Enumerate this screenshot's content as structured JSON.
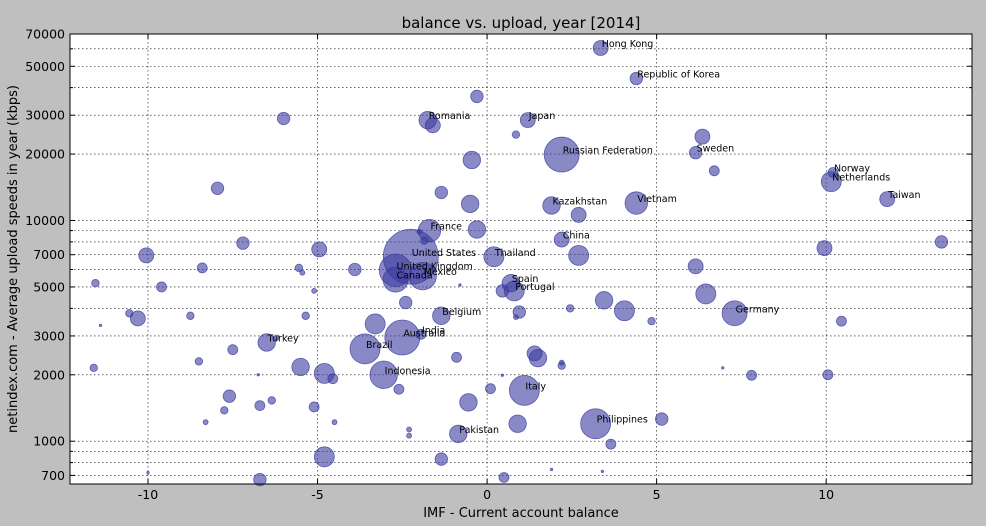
{
  "chart_data": {
    "type": "scatter",
    "title": "balance vs. upload, year [2014]",
    "xlabel": "IMF - Current account balance",
    "ylabel": "netindex.com - Average upload speeds in year (kbps)",
    "xscale": "linear",
    "yscale": "log",
    "xlim": [
      -12.3,
      14.3
    ],
    "ylim": [
      640,
      70000
    ],
    "grid": true,
    "xticks": [
      -10,
      -5,
      0,
      5,
      10
    ],
    "xtick_labels": [
      "-10",
      "-5",
      "0",
      "5",
      "10"
    ],
    "yticks": [
      700,
      1000,
      2000,
      3000,
      5000,
      7000,
      10000,
      20000,
      30000,
      50000,
      70000
    ],
    "ytick_labels": [
      "700",
      "1000",
      "2000",
      "3000",
      "5000",
      "7000",
      "10000",
      "20000",
      "30000",
      "50000",
      "70000"
    ],
    "ygrid_extra": [
      800,
      900,
      4000,
      6000,
      8000,
      9000,
      40000,
      60000
    ],
    "marker_color": "#3a3aa0",
    "background": "#bfbfbf",
    "plot_background": "#ffffff",
    "points": [
      {
        "label": "Hong Kong",
        "x": 3.35,
        "y": 60500,
        "s": 6
      },
      {
        "label": "Republic of Korea",
        "x": 4.4,
        "y": 44000,
        "s": 5
      },
      {
        "label": "Romania",
        "x": -1.75,
        "y": 28500,
        "s": 7
      },
      {
        "label": "Japan",
        "x": 1.2,
        "y": 28500,
        "s": 6
      },
      {
        "label": "Russian Federation",
        "x": 2.2,
        "y": 19900,
        "s": 14
      },
      {
        "label": "Sweden",
        "x": 6.15,
        "y": 20300,
        "s": 5
      },
      {
        "label": "Norway",
        "x": 10.2,
        "y": 16500,
        "s": 4
      },
      {
        "label": "Netherlands",
        "x": 10.15,
        "y": 15000,
        "s": 8
      },
      {
        "label": "Taiwan",
        "x": 11.8,
        "y": 12500,
        "s": 6
      },
      {
        "label": "Kazakhstan",
        "x": 1.9,
        "y": 11700,
        "s": 7
      },
      {
        "label": "Vietnam",
        "x": 4.4,
        "y": 12000,
        "s": 9
      },
      {
        "label": "France",
        "x": -1.7,
        "y": 9000,
        "s": 9
      },
      {
        "label": "China",
        "x": 2.2,
        "y": 8200,
        "s": 6
      },
      {
        "label": "United States",
        "x": -2.25,
        "y": 6850,
        "s": 22
      },
      {
        "label": "Thailand",
        "x": 0.2,
        "y": 6850,
        "s": 8
      },
      {
        "label": "United Kingdom",
        "x": -2.7,
        "y": 5950,
        "s": 13
      },
      {
        "label": "Canada",
        "x": -2.7,
        "y": 5400,
        "s": 10
      },
      {
        "label": "Mexico",
        "x": -1.9,
        "y": 5600,
        "s": 11
      },
      {
        "label": "Spain",
        "x": 0.7,
        "y": 5200,
        "s": 7
      },
      {
        "label": "Portugal",
        "x": 0.8,
        "y": 4800,
        "s": 8
      },
      {
        "label": "Germany",
        "x": 7.3,
        "y": 3800,
        "s": 10
      },
      {
        "label": "Belgium",
        "x": -1.35,
        "y": 3700,
        "s": 7
      },
      {
        "label": "Australia",
        "x": -2.5,
        "y": 2950,
        "s": 14
      },
      {
        "label": "India",
        "x": -1.95,
        "y": 3050,
        "s": 4
      },
      {
        "label": "Brazil",
        "x": -3.6,
        "y": 2620,
        "s": 12
      },
      {
        "label": "Turkey",
        "x": -6.5,
        "y": 2800,
        "s": 7
      },
      {
        "label": "Indonesia",
        "x": -3.05,
        "y": 2000,
        "s": 11
      },
      {
        "label": "Italy",
        "x": 1.1,
        "y": 1700,
        "s": 12
      },
      {
        "label": "Philippines",
        "x": 3.2,
        "y": 1200,
        "s": 12
      },
      {
        "label": "Pakistan",
        "x": -0.85,
        "y": 1080,
        "s": 7
      },
      {
        "label": "",
        "x": -6.0,
        "y": 29000,
        "s": 5
      },
      {
        "label": "",
        "x": -0.3,
        "y": 36500,
        "s": 5
      },
      {
        "label": "",
        "x": -1.6,
        "y": 27000,
        "s": 6
      },
      {
        "label": "",
        "x": 0.85,
        "y": 24500,
        "s": 3
      },
      {
        "label": "",
        "x": 6.35,
        "y": 24000,
        "s": 6
      },
      {
        "label": "",
        "x": -0.45,
        "y": 18800,
        "s": 7
      },
      {
        "label": "",
        "x": 6.7,
        "y": 16800,
        "s": 4
      },
      {
        "label": "",
        "x": -7.95,
        "y": 14000,
        "s": 5
      },
      {
        "label": "",
        "x": -1.35,
        "y": 13400,
        "s": 5
      },
      {
        "label": "",
        "x": -0.5,
        "y": 11900,
        "s": 7
      },
      {
        "label": "",
        "x": 2.7,
        "y": 10600,
        "s": 6
      },
      {
        "label": "",
        "x": -0.3,
        "y": 9100,
        "s": 7
      },
      {
        "label": "",
        "x": -2.0,
        "y": 8900,
        "s": 2
      },
      {
        "label": "",
        "x": -1.85,
        "y": 8100,
        "s": 3
      },
      {
        "label": "",
        "x": 13.4,
        "y": 8000,
        "s": 5
      },
      {
        "label": "",
        "x": -7.2,
        "y": 7900,
        "s": 5
      },
      {
        "label": "",
        "x": 9.95,
        "y": 7500,
        "s": 6
      },
      {
        "label": "",
        "x": -4.95,
        "y": 7400,
        "s": 6
      },
      {
        "label": "",
        "x": -10.05,
        "y": 6950,
        "s": 6
      },
      {
        "label": "",
        "x": 2.7,
        "y": 6950,
        "s": 8
      },
      {
        "label": "",
        "x": -8.4,
        "y": 6100,
        "s": 4
      },
      {
        "label": "",
        "x": -5.55,
        "y": 6100,
        "s": 3
      },
      {
        "label": "",
        "x": -3.9,
        "y": 6000,
        "s": 5
      },
      {
        "label": "",
        "x": -5.45,
        "y": 5800,
        "s": 2
      },
      {
        "label": "",
        "x": 6.15,
        "y": 6200,
        "s": 6
      },
      {
        "label": "",
        "x": -11.55,
        "y": 5200,
        "s": 3
      },
      {
        "label": "",
        "x": -9.6,
        "y": 5000,
        "s": 4
      },
      {
        "label": "",
        "x": -5.1,
        "y": 4800,
        "s": 2
      },
      {
        "label": "",
        "x": -0.8,
        "y": 5100,
        "s": 1
      },
      {
        "label": "",
        "x": 0.45,
        "y": 4800,
        "s": 5
      },
      {
        "label": "",
        "x": 6.45,
        "y": 4650,
        "s": 8
      },
      {
        "label": "",
        "x": 3.45,
        "y": 4350,
        "s": 7
      },
      {
        "label": "",
        "x": -2.4,
        "y": 4250,
        "s": 5
      },
      {
        "label": "",
        "x": 4.05,
        "y": 3900,
        "s": 8
      },
      {
        "label": "",
        "x": -10.55,
        "y": 3800,
        "s": 3
      },
      {
        "label": "",
        "x": -10.3,
        "y": 3600,
        "s": 6
      },
      {
        "label": "",
        "x": -8.75,
        "y": 3700,
        "s": 3
      },
      {
        "label": "",
        "x": -5.35,
        "y": 3700,
        "s": 3
      },
      {
        "label": "",
        "x": 0.95,
        "y": 3850,
        "s": 5
      },
      {
        "label": "",
        "x": 2.45,
        "y": 4000,
        "s": 3
      },
      {
        "label": "",
        "x": 4.85,
        "y": 3500,
        "s": 3
      },
      {
        "label": "",
        "x": 10.45,
        "y": 3500,
        "s": 4
      },
      {
        "label": "",
        "x": -3.3,
        "y": 3400,
        "s": 8
      },
      {
        "label": "",
        "x": 0.85,
        "y": 3650,
        "s": 2
      },
      {
        "label": "",
        "x": -11.4,
        "y": 3350,
        "s": 1
      },
      {
        "label": "",
        "x": -7.5,
        "y": 2600,
        "s": 4
      },
      {
        "label": "",
        "x": -6.2,
        "y": 2950,
        "s": 2
      },
      {
        "label": "",
        "x": -0.9,
        "y": 2400,
        "s": 4
      },
      {
        "label": "",
        "x": 1.4,
        "y": 2500,
        "s": 6
      },
      {
        "label": "",
        "x": 1.5,
        "y": 2380,
        "s": 7
      },
      {
        "label": "",
        "x": -11.6,
        "y": 2150,
        "s": 3
      },
      {
        "label": "",
        "x": -8.5,
        "y": 2300,
        "s": 3
      },
      {
        "label": "",
        "x": -5.5,
        "y": 2170,
        "s": 7
      },
      {
        "label": "",
        "x": -4.8,
        "y": 2030,
        "s": 8
      },
      {
        "label": "",
        "x": -4.55,
        "y": 1920,
        "s": 4
      },
      {
        "label": "",
        "x": 2.2,
        "y": 2200,
        "s": 3
      },
      {
        "label": "",
        "x": 2.2,
        "y": 2270,
        "s": 2
      },
      {
        "label": "",
        "x": 7.8,
        "y": 1990,
        "s": 4
      },
      {
        "label": "",
        "x": 10.05,
        "y": 2000,
        "s": 4
      },
      {
        "label": "",
        "x": -6.75,
        "y": 2000,
        "s": 1
      },
      {
        "label": "",
        "x": 6.95,
        "y": 2150,
        "s": 1
      },
      {
        "label": "",
        "x": 0.45,
        "y": 1990,
        "s": 1
      },
      {
        "label": "",
        "x": -7.6,
        "y": 1600,
        "s": 5
      },
      {
        "label": "",
        "x": -2.6,
        "y": 1720,
        "s": 4
      },
      {
        "label": "",
        "x": 0.1,
        "y": 1730,
        "s": 4
      },
      {
        "label": "",
        "x": -6.35,
        "y": 1530,
        "s": 3
      },
      {
        "label": "",
        "x": -6.7,
        "y": 1450,
        "s": 4
      },
      {
        "label": "",
        "x": -7.75,
        "y": 1380,
        "s": 3
      },
      {
        "label": "",
        "x": -5.1,
        "y": 1430,
        "s": 4
      },
      {
        "label": "",
        "x": -0.55,
        "y": 1500,
        "s": 7
      },
      {
        "label": "",
        "x": 5.15,
        "y": 1260,
        "s": 5
      },
      {
        "label": "",
        "x": 0.9,
        "y": 1200,
        "s": 7
      },
      {
        "label": "",
        "x": -8.3,
        "y": 1220,
        "s": 2
      },
      {
        "label": "",
        "x": -4.5,
        "y": 1220,
        "s": 2
      },
      {
        "label": "",
        "x": -2.3,
        "y": 1130,
        "s": 2
      },
      {
        "label": "",
        "x": -2.3,
        "y": 1060,
        "s": 2
      },
      {
        "label": "",
        "x": 3.65,
        "y": 970,
        "s": 4
      },
      {
        "label": "",
        "x": -4.8,
        "y": 850,
        "s": 8
      },
      {
        "label": "",
        "x": -1.35,
        "y": 830,
        "s": 5
      },
      {
        "label": "",
        "x": -10.0,
        "y": 720,
        "s": 1
      },
      {
        "label": "",
        "x": 1.9,
        "y": 745,
        "s": 1
      },
      {
        "label": "",
        "x": 3.4,
        "y": 730,
        "s": 1
      },
      {
        "label": "",
        "x": 0.5,
        "y": 685,
        "s": 4
      },
      {
        "label": "",
        "x": -6.7,
        "y": 670,
        "s": 5
      }
    ]
  }
}
